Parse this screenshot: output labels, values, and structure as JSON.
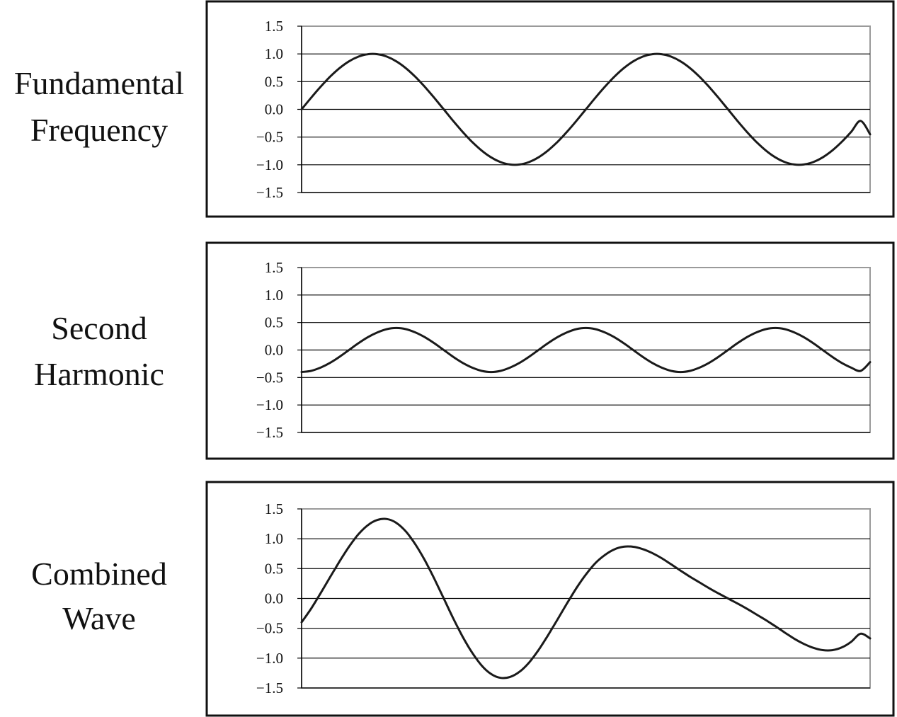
{
  "colors": {
    "background": "#ffffff",
    "wave": "#1a1a1a",
    "frame": "#111111",
    "gridline": "#000000",
    "plot_border": "#9a9a9a"
  },
  "chart_data": [
    {
      "type": "line",
      "label_lines": [
        "Fundamental",
        "Frequency"
      ],
      "ylim": [
        -1.5,
        1.5
      ],
      "yticks": [
        {
          "value": 1.5,
          "label": "1.5"
        },
        {
          "value": 1.0,
          "label": "1.0"
        },
        {
          "value": 0.5,
          "label": "0.5"
        },
        {
          "value": 0.0,
          "label": "0.0"
        },
        {
          "value": -0.5,
          "label": "−0.5"
        },
        {
          "value": -1.0,
          "label": "−1.0"
        },
        {
          "value": -1.5,
          "label": "−1.5"
        }
      ],
      "grid": true,
      "xlim": [
        0,
        60
      ],
      "x": [
        0,
        1,
        2,
        3,
        4,
        5,
        6,
        7,
        8,
        9,
        10,
        11,
        12,
        13,
        14,
        15,
        16,
        17,
        18,
        19,
        20,
        21,
        22,
        23,
        24,
        25,
        26,
        27,
        28,
        29,
        30,
        31,
        32,
        33,
        34,
        35,
        36,
        37,
        38,
        39,
        40,
        41,
        42,
        43,
        44,
        45,
        46,
        47,
        48,
        49,
        50,
        51,
        52,
        53,
        54,
        55,
        56,
        57,
        58,
        59,
        60
      ],
      "series": [
        {
          "values": [
            0.0,
            0.208,
            0.407,
            0.588,
            0.743,
            0.866,
            0.951,
            0.995,
            0.995,
            0.951,
            0.866,
            0.743,
            0.588,
            0.407,
            0.208,
            0.0,
            -0.208,
            -0.407,
            -0.588,
            -0.743,
            -0.866,
            -0.951,
            -0.995,
            -0.995,
            -0.951,
            -0.866,
            -0.743,
            -0.588,
            -0.407,
            -0.208,
            0.0,
            0.208,
            0.407,
            0.588,
            0.743,
            0.866,
            0.951,
            0.995,
            0.995,
            0.951,
            0.866,
            0.743,
            0.588,
            0.407,
            0.208,
            0.0,
            -0.208,
            -0.407,
            -0.588,
            -0.743,
            -0.866,
            -0.951,
            -0.995,
            -0.995,
            -0.951,
            -0.866,
            -0.743,
            -0.588,
            -0.407,
            -0.208,
            -0.45
          ]
        }
      ]
    },
    {
      "type": "line",
      "label_lines": [
        "Second",
        "Harmonic"
      ],
      "ylim": [
        -1.5,
        1.5
      ],
      "yticks": [
        {
          "value": 1.5,
          "label": "1.5"
        },
        {
          "value": 1.0,
          "label": "1.0"
        },
        {
          "value": 0.5,
          "label": "0.5"
        },
        {
          "value": 0.0,
          "label": "0.0"
        },
        {
          "value": -0.5,
          "label": "−0.5"
        },
        {
          "value": -1.0,
          "label": "−1.0"
        },
        {
          "value": -1.5,
          "label": "−1.5"
        }
      ],
      "grid": true,
      "xlim": [
        0,
        60
      ],
      "x": [
        0,
        1,
        2,
        3,
        4,
        5,
        6,
        7,
        8,
        9,
        10,
        11,
        12,
        13,
        14,
        15,
        16,
        17,
        18,
        19,
        20,
        21,
        22,
        23,
        24,
        25,
        26,
        27,
        28,
        29,
        30,
        31,
        32,
        33,
        34,
        35,
        36,
        37,
        38,
        39,
        40,
        41,
        42,
        43,
        44,
        45,
        46,
        47,
        48,
        49,
        50,
        51,
        52,
        53,
        54,
        55,
        56,
        57,
        58,
        59,
        60
      ],
      "series": [
        {
          "values": [
            -0.4,
            -0.38,
            -0.32,
            -0.234,
            -0.124,
            0.0,
            0.124,
            0.234,
            0.32,
            0.38,
            0.4,
            0.38,
            0.32,
            0.234,
            0.124,
            0.0,
            -0.124,
            -0.234,
            -0.32,
            -0.38,
            -0.4,
            -0.38,
            -0.32,
            -0.234,
            -0.124,
            0.0,
            0.124,
            0.234,
            0.32,
            0.38,
            0.4,
            0.38,
            0.32,
            0.234,
            0.124,
            0.0,
            -0.124,
            -0.234,
            -0.32,
            -0.38,
            -0.4,
            -0.38,
            -0.32,
            -0.234,
            -0.124,
            0.0,
            0.124,
            0.234,
            0.32,
            0.38,
            0.4,
            0.38,
            0.32,
            0.234,
            0.124,
            0.0,
            -0.124,
            -0.234,
            -0.32,
            -0.38,
            -0.22
          ]
        }
      ]
    },
    {
      "type": "line",
      "label_lines": [
        "Combined",
        "Wave"
      ],
      "ylim": [
        -1.5,
        1.5
      ],
      "yticks": [
        {
          "value": 1.5,
          "label": "1.5"
        },
        {
          "value": 1.0,
          "label": "1.0"
        },
        {
          "value": 0.5,
          "label": "0.5"
        },
        {
          "value": 0.0,
          "label": "0.0"
        },
        {
          "value": -0.5,
          "label": "−0.5"
        },
        {
          "value": -1.0,
          "label": "−1.0"
        },
        {
          "value": -1.5,
          "label": "−1.5"
        }
      ],
      "grid": true,
      "xlim": [
        0,
        60
      ],
      "x": [
        0,
        1,
        2,
        3,
        4,
        5,
        6,
        7,
        8,
        9,
        10,
        11,
        12,
        13,
        14,
        15,
        16,
        17,
        18,
        19,
        20,
        21,
        22,
        23,
        24,
        25,
        26,
        27,
        28,
        29,
        30,
        31,
        32,
        33,
        34,
        35,
        36,
        37,
        38,
        39,
        40,
        41,
        42,
        43,
        44,
        45,
        46,
        47,
        48,
        49,
        50,
        51,
        52,
        53,
        54,
        55,
        56,
        57,
        58,
        59,
        60
      ],
      "series": [
        {
          "values": [
            -0.4,
            -0.172,
            0.087,
            0.354,
            0.619,
            0.866,
            1.075,
            1.229,
            1.315,
            1.331,
            1.266,
            1.123,
            0.908,
            0.641,
            0.332,
            0.0,
            -0.332,
            -0.641,
            -0.908,
            -1.123,
            -1.266,
            -1.331,
            -1.315,
            -1.229,
            -1.075,
            -0.866,
            -0.619,
            -0.354,
            -0.087,
            0.172,
            0.4,
            0.59,
            0.727,
            0.822,
            0.867,
            0.866,
            0.827,
            0.761,
            0.675,
            0.571,
            0.466,
            0.363,
            0.268,
            0.173,
            0.084,
            0.0,
            -0.084,
            -0.173,
            -0.268,
            -0.363,
            -0.466,
            -0.571,
            -0.675,
            -0.761,
            -0.827,
            -0.866,
            -0.867,
            -0.822,
            -0.727,
            -0.59,
            -0.67
          ]
        }
      ]
    }
  ]
}
